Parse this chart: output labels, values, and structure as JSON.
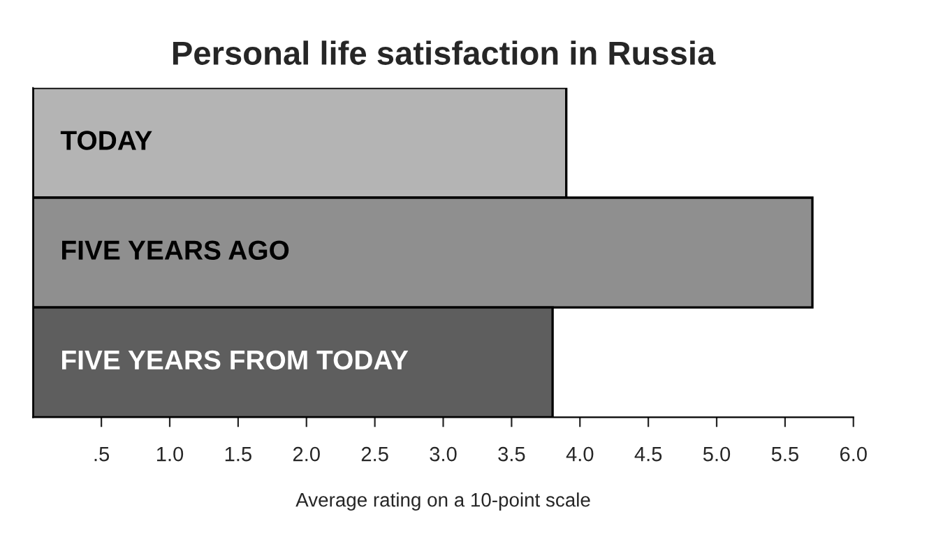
{
  "chart_data": {
    "type": "bar",
    "orientation": "horizontal",
    "title": "Personal life satisfaction in Russia",
    "xlabel": "Average rating on a 10-point scale",
    "categories": [
      "TODAY",
      "FIVE YEARS AGO",
      "FIVE YEARS FROM TODAY"
    ],
    "values": [
      3.9,
      5.7,
      3.8
    ],
    "colors": [
      "#b4b4b4",
      "#8f8f8f",
      "#5e5e5e"
    ],
    "xlim": [
      0,
      6
    ],
    "xticks": [
      {
        "value": 0.5,
        "label": ".5"
      },
      {
        "value": 1,
        "label": "1.0"
      },
      {
        "value": 1.5,
        "label": "1.5"
      },
      {
        "value": 2,
        "label": "2.0"
      },
      {
        "value": 2.5,
        "label": "2.5"
      },
      {
        "value": 3,
        "label": "3.0"
      },
      {
        "value": 3.5,
        "label": "3.5"
      },
      {
        "value": 4,
        "label": "4.0"
      },
      {
        "value": 4.5,
        "label": "4.5"
      },
      {
        "value": 5,
        "label": "5.0"
      },
      {
        "value": 5.5,
        "label": "5.5"
      },
      {
        "value": 6,
        "label": "6.0"
      }
    ],
    "grid": false,
    "legend": false
  }
}
